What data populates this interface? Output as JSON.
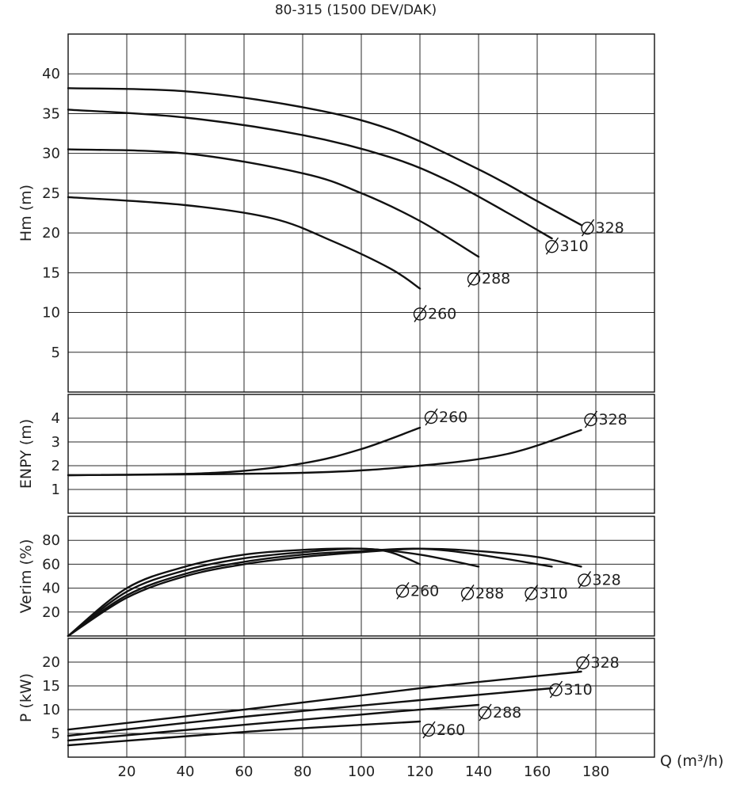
{
  "chart_data": {
    "type": "line",
    "title": "80-315 (1500 DEV/DAK)",
    "x": {
      "label": "Q (m³/h)",
      "range": [
        0,
        200
      ],
      "ticks": [
        20,
        40,
        60,
        80,
        100,
        120,
        140,
        160,
        180
      ],
      "tick_labels": [
        "20",
        "40",
        "60",
        "80",
        "100",
        "120",
        "140",
        "160",
        "180"
      ]
    },
    "grid": true,
    "panels": [
      {
        "id": "head",
        "ylabel": "Hm (m)",
        "ylim": [
          0,
          45
        ],
        "yticks": [
          5,
          10,
          15,
          20,
          25,
          30,
          35,
          40
        ],
        "ytick_labels": [
          "5",
          "10",
          "15",
          "20",
          "25",
          "30",
          "35",
          "40"
        ],
        "series": [
          {
            "name": "Ø328",
            "label_text": "328",
            "x": [
              0,
              40,
              80,
              110,
              140,
              160,
              175
            ],
            "y": [
              38.2,
              37.8,
              35.8,
              33,
              28,
              24,
              21
            ]
          },
          {
            "name": "Ø310",
            "label_text": "310",
            "x": [
              0,
              40,
              80,
              110,
              130,
              150,
              165
            ],
            "y": [
              35.5,
              34.5,
              32.3,
              29.5,
              26.5,
              22.5,
              19.3
            ]
          },
          {
            "name": "Ø288",
            "label_text": "288",
            "x": [
              0,
              40,
              80,
              100,
              120,
              140
            ],
            "y": [
              30.5,
              30,
              27.5,
              25,
              21.5,
              17
            ]
          },
          {
            "name": "Ø260",
            "label_text": "260",
            "x": [
              0,
              40,
              70,
              90,
              110,
              120
            ],
            "y": [
              24.5,
              23.5,
              21.8,
              19,
              15.5,
              13
            ]
          }
        ]
      },
      {
        "id": "npsh",
        "ylabel": "ENPY (m)",
        "ylim": [
          0,
          5
        ],
        "yticks": [
          1,
          2,
          3,
          4
        ],
        "ytick_labels": [
          "1",
          "2",
          "3",
          "4"
        ],
        "series": [
          {
            "name": "Ø260",
            "label_text": "260",
            "x": [
              0,
              50,
              80,
              100,
              120
            ],
            "y": [
              1.6,
              1.7,
              2.1,
              2.7,
              3.6
            ]
          },
          {
            "name": "Ø328",
            "label_text": "328",
            "x": [
              0,
              80,
              120,
              150,
              175
            ],
            "y": [
              1.6,
              1.7,
              2.0,
              2.5,
              3.5
            ]
          }
        ]
      },
      {
        "id": "efficiency",
        "ylabel": "Verim (%)",
        "ylim": [
          0,
          100
        ],
        "yticks": [
          20,
          40,
          60,
          80
        ],
        "ytick_labels": [
          "20",
          "40",
          "60",
          "80"
        ],
        "series": [
          {
            "name": "Ø260",
            "label_text": "260",
            "x": [
              0,
              20,
              40,
              60,
              80,
              100,
              110,
              120
            ],
            "y": [
              0,
              40,
              58,
              68,
              72,
              73,
              70,
              60
            ]
          },
          {
            "name": "Ø288",
            "label_text": "288",
            "x": [
              0,
              20,
              40,
              60,
              80,
              100,
              120,
              140
            ],
            "y": [
              0,
              37,
              55,
              65,
              70,
              73,
              68,
              58
            ]
          },
          {
            "name": "Ø310",
            "label_text": "310",
            "x": [
              0,
              20,
              40,
              60,
              80,
              100,
              120,
              140,
              165
            ],
            "y": [
              0,
              34,
              52,
              62,
              68,
              71,
              73,
              68,
              58
            ]
          },
          {
            "name": "Ø328",
            "label_text": "328",
            "x": [
              0,
              20,
              40,
              60,
              80,
              100,
              120,
              140,
              160,
              175
            ],
            "y": [
              0,
              32,
              50,
              60,
              66,
              70,
              73,
              71,
              66,
              58
            ]
          }
        ]
      },
      {
        "id": "power",
        "ylabel": "P (kW)",
        "ylim": [
          0,
          25
        ],
        "yticks": [
          5,
          10,
          15,
          20
        ],
        "ytick_labels": [
          "5",
          "10",
          "15",
          "20"
        ],
        "series": [
          {
            "name": "Ø328",
            "label_text": "328",
            "x": [
              0,
              60,
              120,
              175
            ],
            "y": [
              5.8,
              10,
              14.5,
              18
            ]
          },
          {
            "name": "Ø310",
            "label_text": "310",
            "x": [
              0,
              60,
              120,
              165
            ],
            "y": [
              4.5,
              8.5,
              12,
              14.5
            ]
          },
          {
            "name": "Ø288",
            "label_text": "288",
            "x": [
              0,
              60,
              110,
              140
            ],
            "y": [
              3.5,
              6.8,
              9.5,
              11
            ]
          },
          {
            "name": "Ø260",
            "label_text": "260",
            "x": [
              0,
              60,
              100,
              120
            ],
            "y": [
              2.5,
              5.3,
              6.8,
              7.5
            ]
          }
        ]
      }
    ]
  }
}
